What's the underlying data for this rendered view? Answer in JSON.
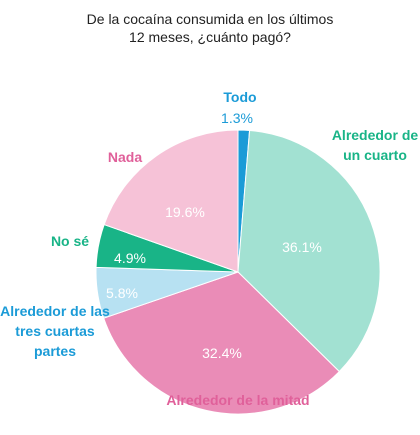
{
  "chart_data": {
    "type": "pie",
    "title": [
      "De la cocaína consumida en los últimos",
      "12 meses, ¿cuánto pagó?"
    ],
    "categories": [
      "Todo",
      "Alrededor de un cuarto",
      "Alrededor de la mitad",
      "Alrededor de las tres cuartas partes",
      "No sé",
      "Nada"
    ],
    "values": [
      1.3,
      36.1,
      32.4,
      5.8,
      4.9,
      19.6
    ],
    "value_labels": [
      "1.3%",
      "36.1%",
      "32.4%",
      "5.8%",
      "4.9%",
      "19.6%"
    ],
    "colors": [
      "#1b9bd7",
      "#a2e1d2",
      "#ea8cb7",
      "#b7e1f2",
      "#19b487",
      "#f6c2d7"
    ],
    "label_colors": [
      "#1b9bd7",
      "#19b487",
      "#e0609a",
      "#1b9bd7",
      "#19b487",
      "#e0609a"
    ]
  }
}
